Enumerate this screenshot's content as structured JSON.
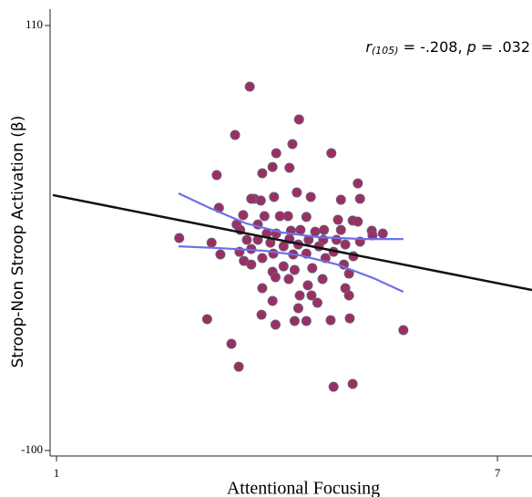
{
  "chart_data": {
    "type": "scatter",
    "x_label": "Attentional Focusing",
    "y_label": "Stroop-Non Stroop Activation (β)",
    "annotation": {
      "r": "r",
      "df": "(105)",
      "r_text": " = -.208, ",
      "p": "p",
      "p_text": " = .032"
    },
    "xlim": [
      0.913,
      7.47
    ],
    "ylim": [
      -102.7,
      118.1
    ],
    "xticks": [
      1,
      7
    ],
    "yticks": [
      -100,
      110
    ],
    "point_color": "#9b2f62",
    "point_edge": "#6d5a78",
    "x": [
      3.63,
      3.43,
      4.3,
      3.18,
      4.21,
      4.74,
      3.99,
      3.94,
      4.17,
      3.8,
      3.69,
      3.65,
      3.78,
      3.96,
      4.27,
      4.46,
      4.87,
      5.1,
      5.13,
      3.21,
      3.54,
      3.83,
      4.04,
      4.15,
      4.4,
      4.83,
      5.03,
      3.45,
      3.5,
      3.74,
      3.86,
      3.99,
      4.19,
      4.32,
      4.52,
      4.64,
      4.87,
      5.1,
      5.29,
      5.44,
      5.3,
      2.67,
      3.11,
      3.59,
      3.74,
      3.91,
      4.17,
      4.29,
      4.43,
      4.63,
      4.81,
      4.93,
      5.13,
      3.23,
      3.49,
      3.65,
      3.8,
      3.95,
      4.09,
      4.22,
      4.4,
      4.57,
      4.66,
      4.77,
      5.04,
      3.55,
      3.65,
      3.94,
      4.09,
      4.24,
      4.48,
      4.91,
      4.98,
      3.98,
      4.16,
      4.42,
      4.62,
      3.8,
      4.31,
      4.47,
      4.93,
      4.98,
      3.94,
      4.55,
      4.29,
      3.05,
      3.79,
      3.98,
      4.24,
      4.4,
      4.73,
      4.99,
      5.72,
      3.38,
      3.48,
      4.77,
      5.03
    ],
    "values": [
      79.8,
      55.9,
      63.6,
      36.1,
      51.4,
      46.9,
      46.9,
      40.1,
      39.7,
      37.0,
      24.4,
      24.4,
      23.5,
      25.3,
      27.5,
      25.3,
      23.9,
      32.0,
      24.4,
      19.9,
      16.3,
      15.8,
      15.8,
      15.8,
      15.4,
      14.0,
      13.6,
      11.7,
      9.0,
      11.7,
      7.2,
      7.2,
      8.6,
      9.0,
      8.1,
      9.0,
      9.0,
      13.1,
      8.6,
      7.2,
      6.3,
      5.0,
      2.7,
      4.1,
      4.1,
      2.7,
      4.5,
      1.8,
      4.1,
      4.1,
      4.1,
      1.8,
      3.2,
      -3.1,
      -1.8,
      -0.4,
      -4.9,
      -2.7,
      0.9,
      -3.1,
      -2.7,
      0.9,
      -4.9,
      -1.8,
      -4.0,
      -6.3,
      -8.1,
      -11.7,
      -9.0,
      -10.8,
      -9.9,
      -8.1,
      -12.6,
      -14.4,
      -15.3,
      -18.4,
      -15.3,
      -19.8,
      -23.4,
      -23.4,
      -19.8,
      -23.4,
      -26.1,
      -27.0,
      -29.7,
      -35.1,
      -32.9,
      -37.8,
      -36.0,
      -36.0,
      -35.6,
      -34.7,
      -40.5,
      -47.3,
      -58.6,
      -68.5,
      -67.1
    ],
    "fit_line": {
      "color": "#111111",
      "x": [
        0.95,
        7.47
      ],
      "values": [
        26.2,
        -20.7
      ]
    },
    "ci_upper": {
      "color": "#6f6fe8",
      "x": [
        2.66,
        3.08,
        3.58,
        4.07,
        4.57,
        5.19,
        5.72
      ],
      "values": [
        27.1,
        19.9,
        12.2,
        7.7,
        5.4,
        4.5,
        4.5
      ]
    },
    "ci_lower": {
      "color": "#6f6fe8",
      "x": [
        2.66,
        3.21,
        3.83,
        4.32,
        4.82,
        5.31,
        5.72
      ],
      "values": [
        0.9,
        0.0,
        -1.3,
        -3.6,
        -8.1,
        -14.8,
        -21.6
      ]
    }
  }
}
